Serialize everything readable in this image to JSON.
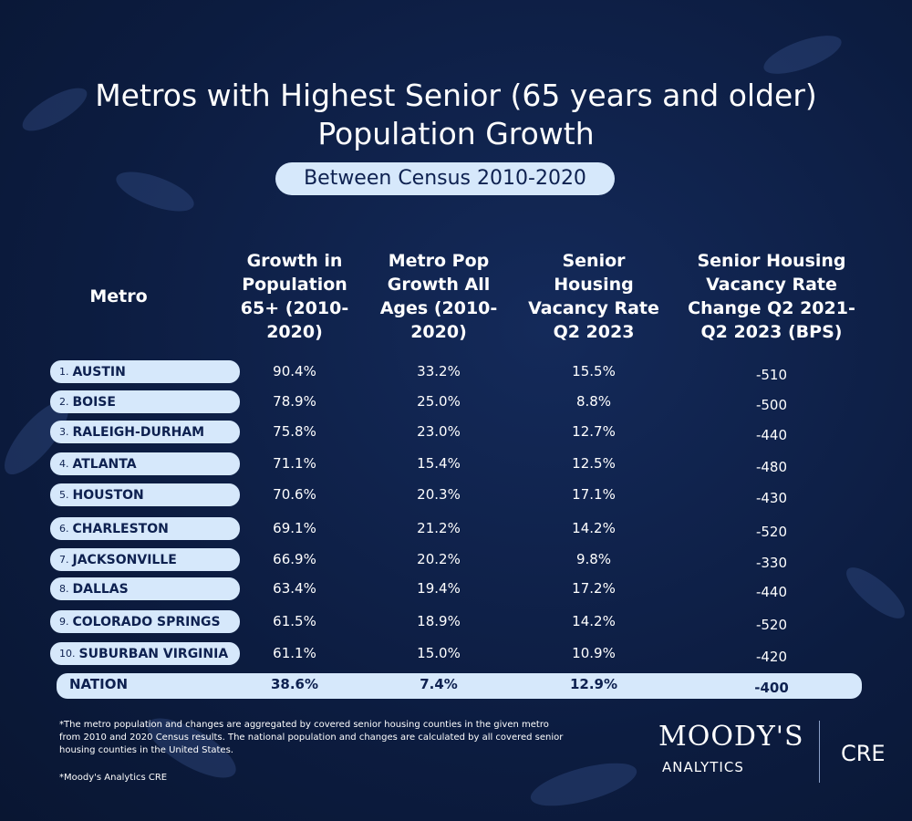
{
  "header": {
    "title": "Metros with Highest Senior (65 years and older) Population Growth",
    "subtitle": "Between Census 2010-2020"
  },
  "table": {
    "columns": [
      "Metro",
      "Growth in Population 65+ (2010-2020)",
      "Metro Pop Growth All Ages (2010-2020)",
      "Senior Housing Vacancy Rate Q2 2023",
      "Senior Housing Vacancy Rate Change Q2 2021-Q2 2023 (BPS)"
    ],
    "rows": [
      [
        "1.",
        "AUSTIN",
        "90.4%",
        "33.2%",
        "15.5%",
        "-510"
      ],
      [
        "2.",
        "BOISE",
        "78.9%",
        "25.0%",
        "8.8%",
        "-500"
      ],
      [
        "3.",
        "RALEIGH-DURHAM",
        "75.8%",
        "23.0%",
        "12.7%",
        "-440"
      ],
      [
        "4.",
        "ATLANTA",
        "71.1%",
        "15.4%",
        "12.5%",
        "-480"
      ],
      [
        "5.",
        "HOUSTON",
        "70.6%",
        "20.3%",
        "17.1%",
        "-430"
      ],
      [
        "6.",
        "CHARLESTON",
        "69.1%",
        "21.2%",
        "14.2%",
        "-520"
      ],
      [
        "7.",
        "JACKSONVILLE",
        "66.9%",
        "20.2%",
        "9.8%",
        "-330"
      ],
      [
        "8.",
        "DALLAS",
        "63.4%",
        "19.4%",
        "17.2%",
        "-440"
      ],
      [
        "9.",
        "COLORADO SPRINGS",
        "61.5%",
        "18.9%",
        "14.2%",
        "-520"
      ],
      [
        "10.",
        "SUBURBAN VIRGINIA",
        "61.1%",
        "15.0%",
        "10.9%",
        "-420"
      ]
    ],
    "total": [
      "NATION",
      "38.6%",
      "7.4%",
      "12.9%",
      "-400"
    ]
  },
  "footnotes": [
    "*The metro population and changes are aggregated by covered senior housing counties in the given metro from 2010 and 2020 Census results. The national population and changes are calculated by all covered senior housing counties in the United States.",
    "*Moody's Analytics CRE"
  ],
  "logo": {
    "brand": "MOODY'S",
    "sub": "ANALYTICS",
    "unit": "CRE"
  }
}
